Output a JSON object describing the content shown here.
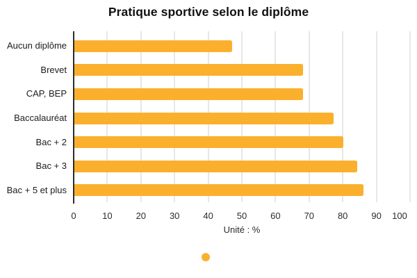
{
  "chart_data": {
    "type": "bar",
    "orientation": "horizontal",
    "title": "Pratique sportive selon le diplôme",
    "categories": [
      "Aucun diplôme",
      "Brevet",
      "CAP, BEP",
      "Baccalauréat",
      "Bac + 2",
      "Bac + 3",
      "Bac + 5 et plus"
    ],
    "values": [
      47,
      68,
      68,
      77,
      80,
      84,
      86
    ],
    "xlabel": "Unité : %",
    "ylabel": "",
    "xlim": [
      0,
      100
    ],
    "xticks": [
      0,
      10,
      20,
      30,
      40,
      50,
      60,
      70,
      80,
      90,
      100
    ],
    "grid": true,
    "legend_position": "bottom",
    "legend_label": "",
    "bar_color": "#FBB02D",
    "grid_color": "#E7E7E7",
    "axis_color": "#2B2B2B",
    "text_color": "#1C1C1C"
  }
}
